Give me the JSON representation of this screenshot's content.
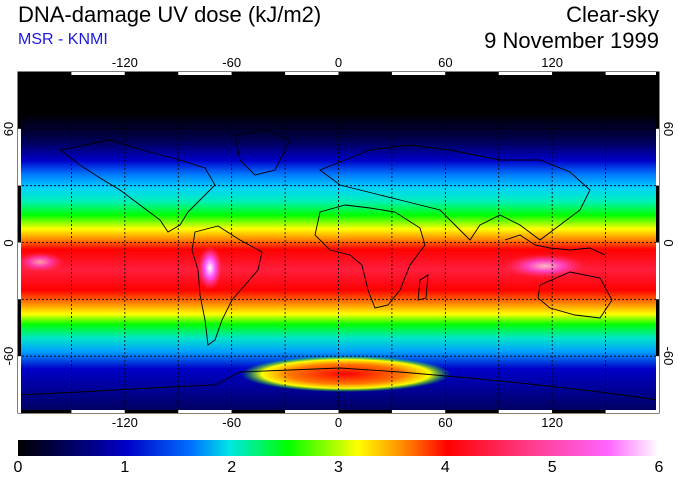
{
  "header": {
    "title": "DNA-damage UV dose (kJ/m2)",
    "subtitle": "MSR - KNMI",
    "condition": "Clear-sky",
    "date": "9 November 1999"
  },
  "map": {
    "lon_ticks": [
      "-120",
      "-60",
      "0",
      "60",
      "120"
    ],
    "lat_ticks_left": [
      "60",
      "0",
      "-60"
    ],
    "lat_ticks_right": [
      "60",
      "0",
      "-60"
    ],
    "lon_range": [
      -180,
      180
    ],
    "lat_range": [
      -90,
      90
    ]
  },
  "colorbar": {
    "labels": [
      "0",
      "1",
      "2",
      "3",
      "4",
      "5",
      "6"
    ],
    "range": [
      0,
      6
    ],
    "colors": [
      "#000000",
      "#0000c8",
      "#00a0ff",
      "#00e6c8",
      "#00ff00",
      "#ffff00",
      "#ff8c00",
      "#ff0000",
      "#ff3c8c",
      "#ff50ff",
      "#ffffff"
    ]
  }
}
